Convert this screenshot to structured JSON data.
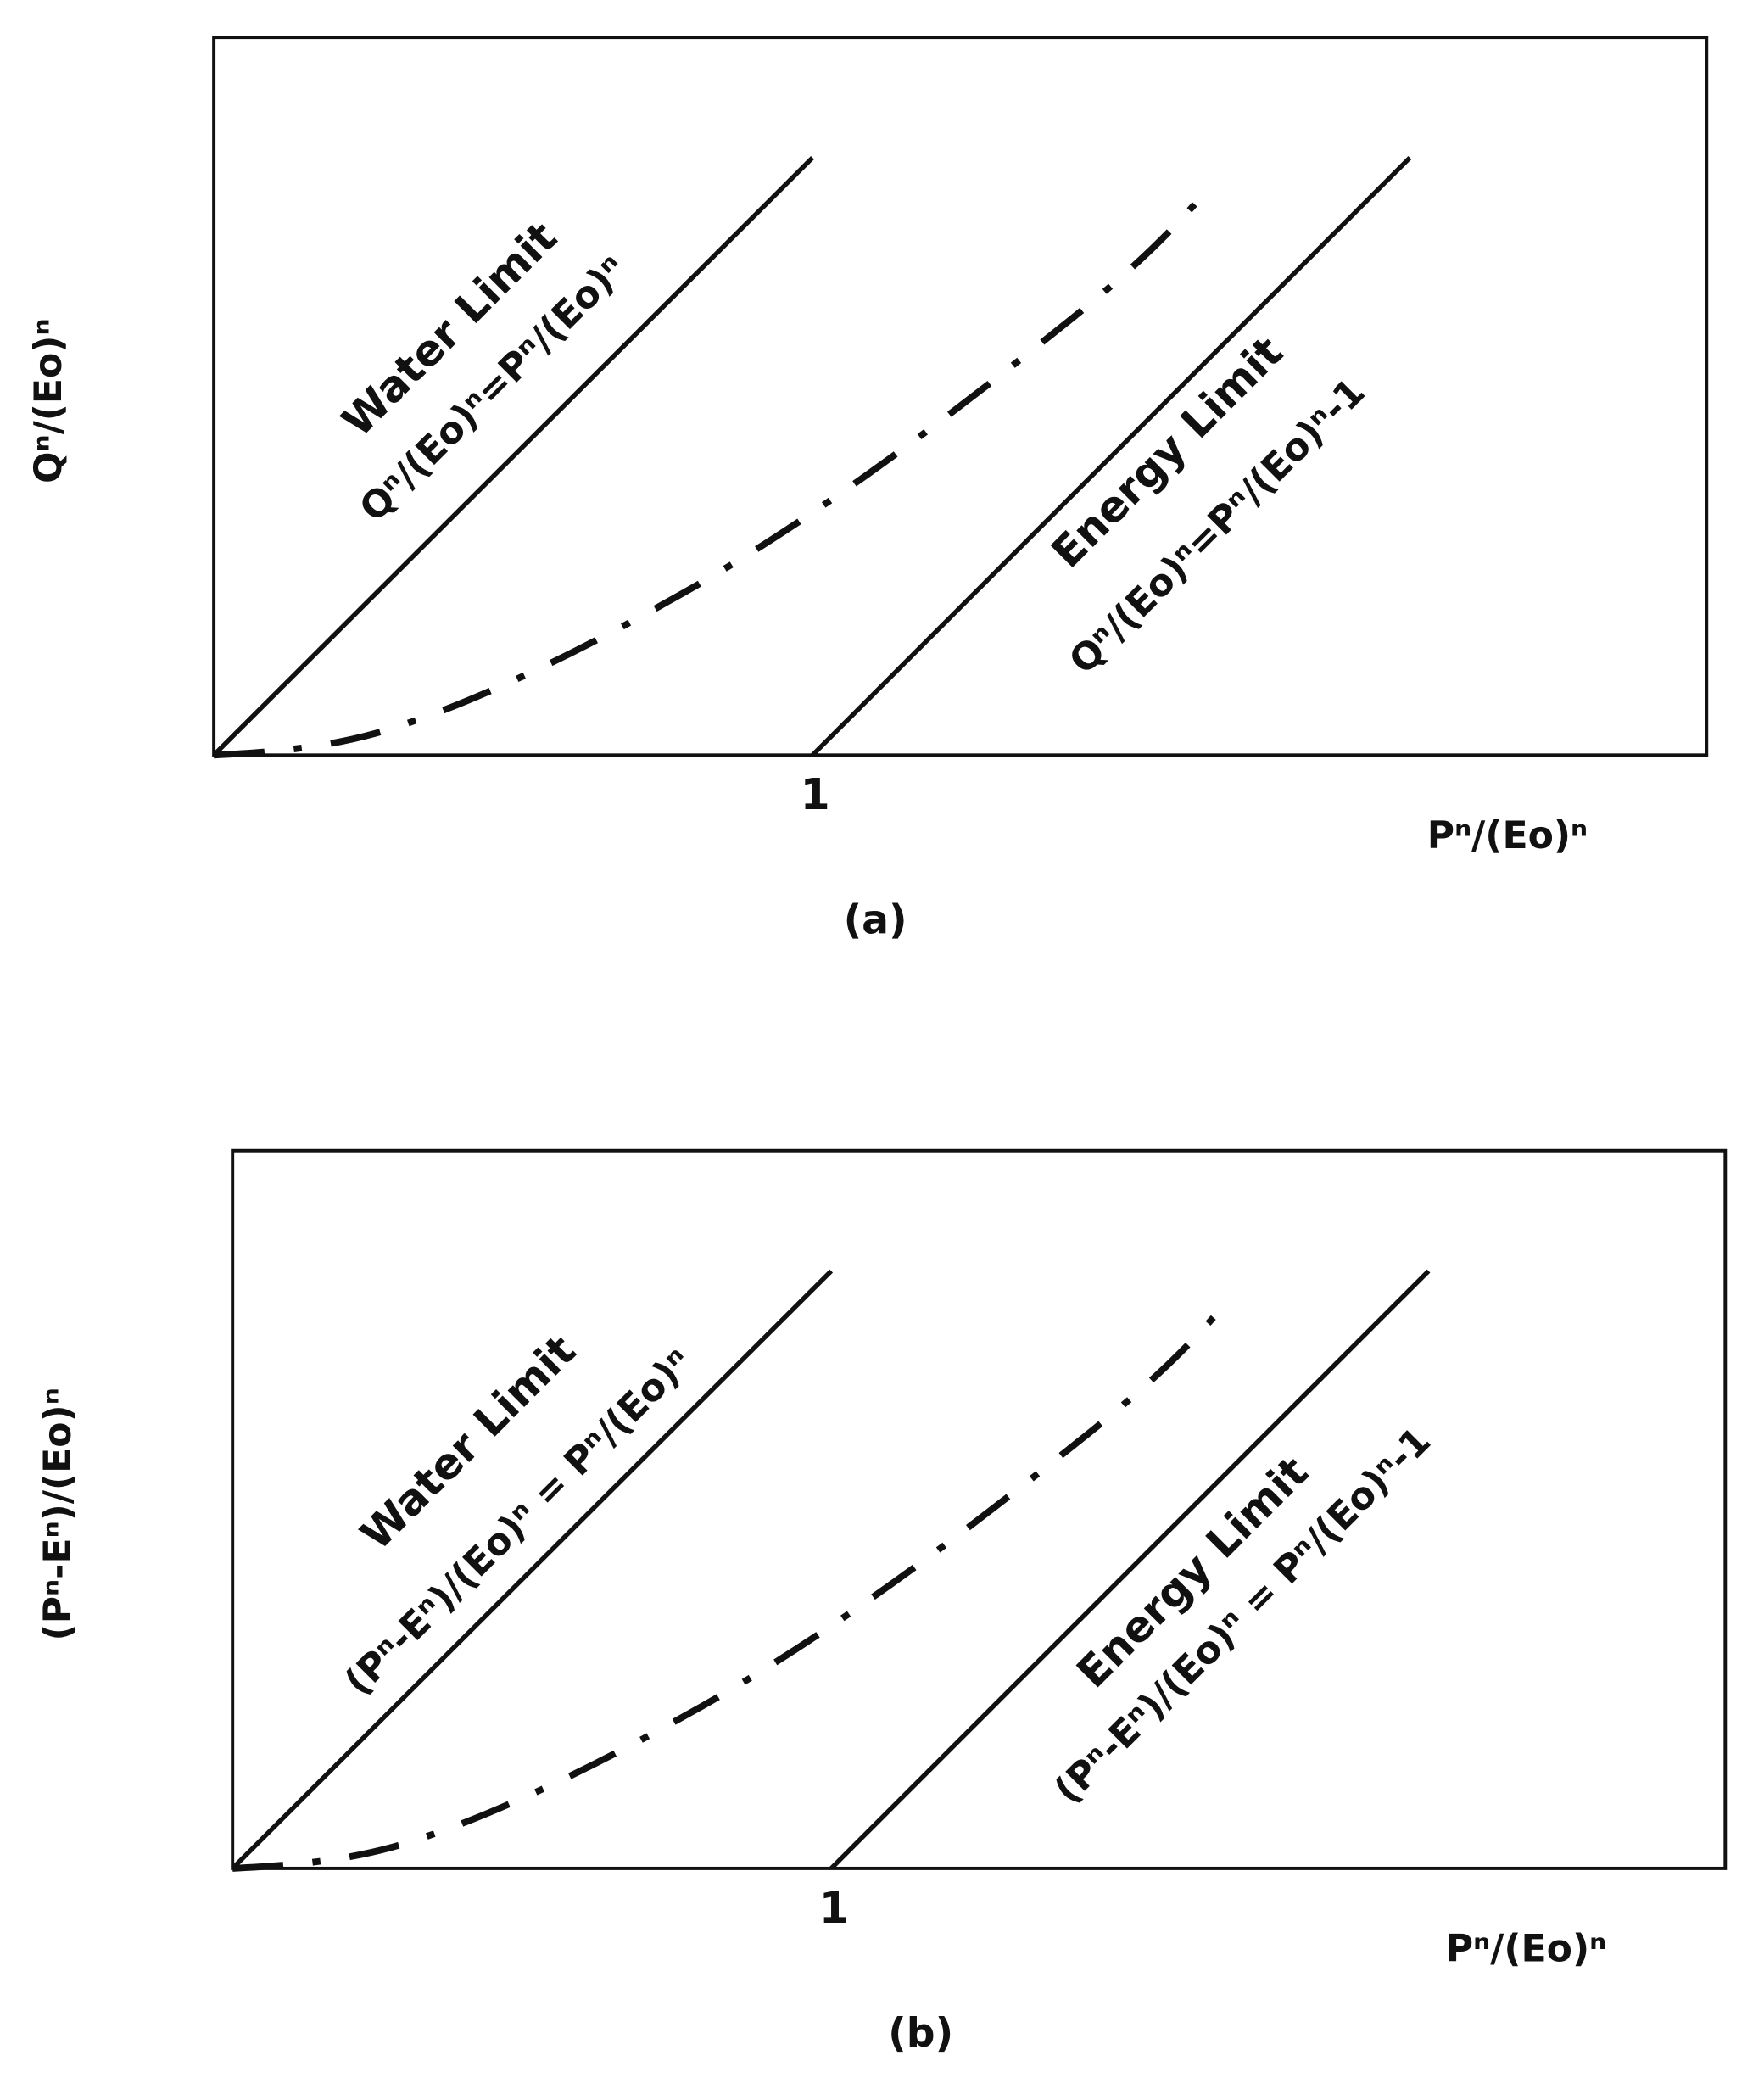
{
  "panels": [
    {
      "y_label": "Qⁿ/(Eo)ⁿ",
      "x_label": "Pⁿ/(Eo)ⁿ",
      "x_tick": "1",
      "caption": "(a)",
      "water_limit": {
        "title": "Water Limit",
        "equation": "Qⁿ/(Eo)ⁿ=Pⁿ/(Eo)ⁿ"
      },
      "energy_limit": {
        "title": "Energy Limit",
        "equation": "Qⁿ/(Eo)ⁿ=Pⁿ/(Eo)ⁿ-1"
      }
    },
    {
      "y_label": "(Pⁿ-Eⁿ)/(Eo)ⁿ",
      "x_label": "Pⁿ/(Eo)ⁿ",
      "x_tick": "1",
      "caption": "(b)",
      "water_limit": {
        "title": "Water Limit",
        "equation": "(Pⁿ-Eⁿ)/(Eo)ⁿ = Pⁿ/(Eo)ⁿ"
      },
      "energy_limit": {
        "title": "Energy Limit",
        "equation": "(Pⁿ-Eⁿ)/(Eo)ⁿ = Pⁿ/(Eo)ⁿ-1"
      }
    }
  ]
}
